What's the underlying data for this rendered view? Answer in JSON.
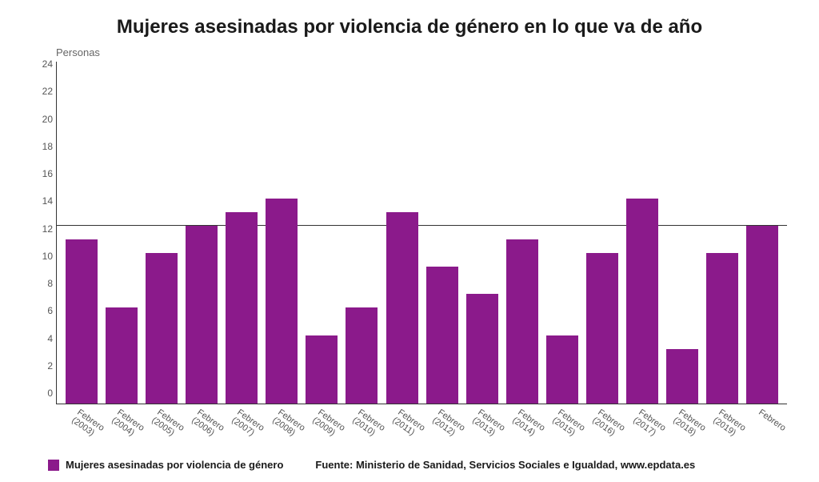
{
  "chart": {
    "type": "bar",
    "title": "Mujeres asesinadas por violencia de género en lo que va de año",
    "subtitle": "Personas",
    "categories": [
      {
        "month": "Febrero",
        "year": "(2003)"
      },
      {
        "month": "Febrero",
        "year": "(2004)"
      },
      {
        "month": "Febrero",
        "year": "(2005)"
      },
      {
        "month": "Febrero",
        "year": "(2006)"
      },
      {
        "month": "Febrero",
        "year": "(2007)"
      },
      {
        "month": "Febrero",
        "year": "(2008)"
      },
      {
        "month": "Febrero",
        "year": "(2009)"
      },
      {
        "month": "Febrero",
        "year": "(2010)"
      },
      {
        "month": "Febrero",
        "year": "(2011)"
      },
      {
        "month": "Febrero",
        "year": "(2012)"
      },
      {
        "month": "Febrero",
        "year": "(2013)"
      },
      {
        "month": "Febrero",
        "year": "(2014)"
      },
      {
        "month": "Febrero",
        "year": "(2015)"
      },
      {
        "month": "Febrero",
        "year": "(2016)"
      },
      {
        "month": "Febrero",
        "year": "(2017)"
      },
      {
        "month": "Febrero",
        "year": "(2018)"
      },
      {
        "month": "Febrero",
        "year": "(2019)"
      },
      {
        "month": "Febrero",
        "year": ""
      }
    ],
    "values": [
      12,
      7,
      11,
      13,
      14,
      15,
      5,
      7,
      14,
      10,
      8,
      12,
      5,
      11,
      15,
      4,
      11,
      13
    ],
    "bar_color": "#8b1a8b",
    "ylim": [
      0,
      25
    ],
    "ytick_step": 2,
    "yticks": [
      0,
      2,
      4,
      6,
      8,
      10,
      12,
      14,
      16,
      18,
      20,
      22,
      24
    ],
    "reference_line_value": 13,
    "reference_line_color": "#333333",
    "axis_color": "#333333",
    "background_color": "#ffffff",
    "tick_font_color": "#555555",
    "title_fontsize": 24,
    "subtitle_fontsize": 13,
    "tick_fontsize": 12,
    "xlabel_fontsize": 11,
    "bar_width": 0.8,
    "xlabel_rotation_deg": 35
  },
  "legend": {
    "swatch_color": "#8b1a8b",
    "label": "Mujeres asesinadas por violencia de género"
  },
  "source": {
    "text": "Fuente: Ministerio de Sanidad, Servicios Sociales e Igualdad, www.epdata.es"
  }
}
